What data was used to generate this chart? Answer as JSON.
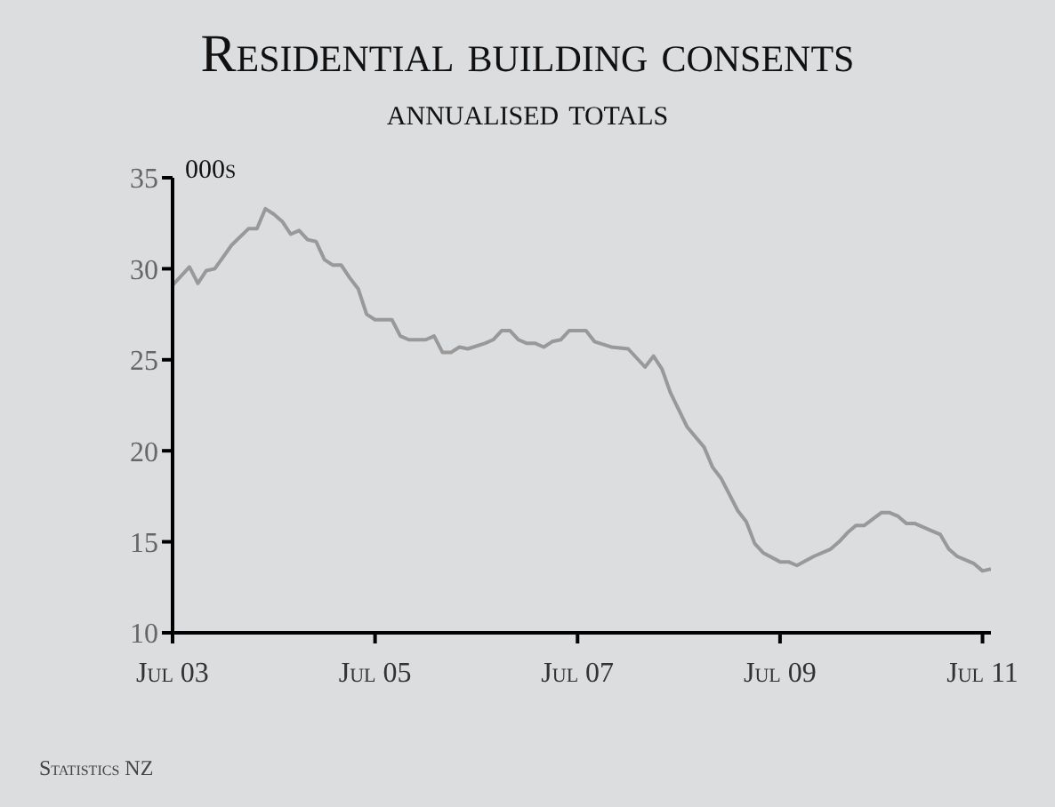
{
  "chart_data": {
    "type": "line",
    "title": "Residential building consents",
    "subtitle": "annualised totals",
    "ylabel": "000s",
    "annotations": [
      "Statistics NZ"
    ],
    "x": [
      "2003-07",
      "2003-09",
      "2003-10",
      "2003-11",
      "2003-12",
      "2004-02",
      "2004-04",
      "2004-05",
      "2004-06",
      "2004-07",
      "2004-08",
      "2004-09",
      "2004-10",
      "2004-11",
      "2004-12",
      "2005-01",
      "2005-02",
      "2005-03",
      "2005-04",
      "2005-05",
      "2005-06",
      "2005-07",
      "2005-09",
      "2005-10",
      "2005-11",
      "2006-01",
      "2006-02",
      "2006-03",
      "2006-04",
      "2006-05",
      "2006-06",
      "2006-08",
      "2006-09",
      "2006-10",
      "2006-11",
      "2006-12",
      "2007-01",
      "2007-02",
      "2007-03",
      "2007-04",
      "2007-05",
      "2007-06",
      "2007-07",
      "2007-08",
      "2007-09",
      "2007-11",
      "2008-01",
      "2008-03",
      "2008-04",
      "2008-05",
      "2008-06",
      "2008-08",
      "2008-10",
      "2008-11",
      "2008-12",
      "2009-02",
      "2009-03",
      "2009-04",
      "2009-05",
      "2009-07",
      "2009-08",
      "2009-09",
      "2009-11",
      "2010-01",
      "2010-02",
      "2010-03",
      "2010-04",
      "2010-05",
      "2010-07",
      "2010-08",
      "2010-09",
      "2010-10",
      "2010-11",
      "2011-01",
      "2011-02",
      "2011-03",
      "2011-04",
      "2011-06",
      "2011-07",
      "2011-08"
    ],
    "series": [
      {
        "color": "#999999",
        "values": [
          29.1,
          30.1,
          29.2,
          29.9,
          30.0,
          31.3,
          32.2,
          32.2,
          33.3,
          33.0,
          32.6,
          31.9,
          32.1,
          31.6,
          31.5,
          30.5,
          30.2,
          30.2,
          29.5,
          28.9,
          27.5,
          27.2,
          27.2,
          26.3,
          26.1,
          26.1,
          26.3,
          25.4,
          25.4,
          25.7,
          25.6,
          25.9,
          26.1,
          26.6,
          26.6,
          26.1,
          25.9,
          25.9,
          25.7,
          26.0,
          26.1,
          26.6,
          26.6,
          26.6,
          26.0,
          25.7,
          25.6,
          24.6,
          25.2,
          24.5,
          23.2,
          21.3,
          20.2,
          19.1,
          18.5,
          16.7,
          16.1,
          14.9,
          14.4,
          13.9,
          13.9,
          13.7,
          14.2,
          14.6,
          15.0,
          15.5,
          15.9,
          15.9,
          16.6,
          16.6,
          16.4,
          16.0,
          16.0,
          15.6,
          15.4,
          14.6,
          14.2,
          13.8,
          13.4,
          13.5
        ]
      }
    ],
    "xlim": [
      "2003-07",
      "2011-08"
    ],
    "xticks": [
      {
        "value": "2003-07",
        "label": "Jul 03"
      },
      {
        "value": "2005-07",
        "label": "Jul 05"
      },
      {
        "value": "2007-07",
        "label": "Jul 07"
      },
      {
        "value": "2009-07",
        "label": "Jul 09"
      },
      {
        "value": "2011-07",
        "label": "Jul 11"
      }
    ],
    "ylim": [
      10,
      35
    ],
    "yticks": [
      10,
      15,
      20,
      25,
      30,
      35
    ],
    "grid": false,
    "legend": false,
    "marker": "none",
    "line_style": "solid"
  }
}
